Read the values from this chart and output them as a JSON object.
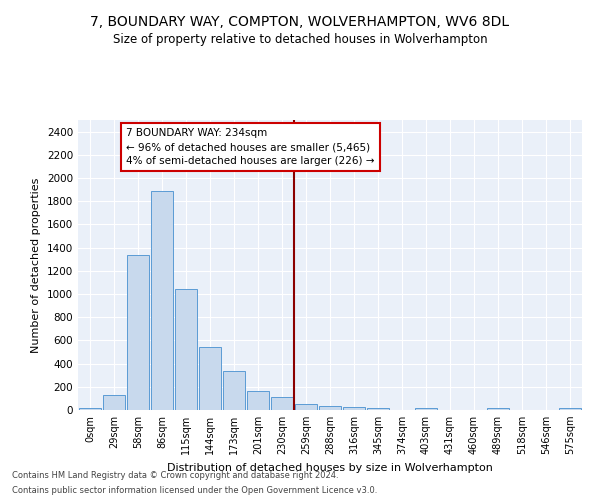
{
  "title": "7, BOUNDARY WAY, COMPTON, WOLVERHAMPTON, WV6 8DL",
  "subtitle": "Size of property relative to detached houses in Wolverhampton",
  "xlabel": "Distribution of detached houses by size in Wolverhampton",
  "ylabel": "Number of detached properties",
  "bin_labels": [
    "0sqm",
    "29sqm",
    "58sqm",
    "86sqm",
    "115sqm",
    "144sqm",
    "173sqm",
    "201sqm",
    "230sqm",
    "259sqm",
    "288sqm",
    "316sqm",
    "345sqm",
    "374sqm",
    "403sqm",
    "431sqm",
    "460sqm",
    "489sqm",
    "518sqm",
    "546sqm",
    "575sqm"
  ],
  "bar_heights": [
    20,
    130,
    1340,
    1890,
    1040,
    540,
    340,
    165,
    110,
    55,
    35,
    30,
    20,
    0,
    20,
    0,
    0,
    20,
    0,
    0,
    20
  ],
  "bar_color": "#c8d9ed",
  "bar_edge_color": "#5b9bd5",
  "vline_x": 8.5,
  "vline_color": "#8b0000",
  "annotation_text": "7 BOUNDARY WAY: 234sqm\n← 96% of detached houses are smaller (5,465)\n4% of semi-detached houses are larger (226) →",
  "annotation_box_color": "#ffffff",
  "annotation_box_edge": "#cc0000",
  "ylim": [
    0,
    2500
  ],
  "yticks": [
    0,
    200,
    400,
    600,
    800,
    1000,
    1200,
    1400,
    1600,
    1800,
    2000,
    2200,
    2400
  ],
  "bg_color": "#eaf0f9",
  "footnote1": "Contains HM Land Registry data © Crown copyright and database right 2024.",
  "footnote2": "Contains public sector information licensed under the Open Government Licence v3.0."
}
